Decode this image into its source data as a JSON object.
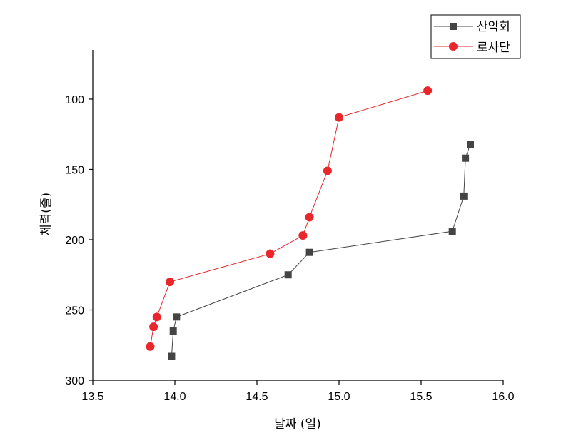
{
  "chart_data": {
    "type": "line",
    "xlabel": "날짜 (일)",
    "ylabel": "체력(줄)",
    "xlim": [
      13.5,
      16.0
    ],
    "ylim": [
      300,
      65
    ],
    "y_inverted": true,
    "xticks": [
      "13.5",
      "14.0",
      "14.5",
      "15.0",
      "15.5",
      "16.0"
    ],
    "yticks": [
      "100",
      "150",
      "200",
      "250",
      "300"
    ],
    "legend_position": "top-right",
    "grid": false,
    "series": [
      {
        "name": "산악회",
        "color": "#444444",
        "marker": "square",
        "x": [
          13.98,
          13.99,
          14.01,
          14.69,
          14.82,
          15.69,
          15.76,
          15.77,
          15.8
        ],
        "y": [
          283,
          265,
          255,
          225,
          209,
          194,
          169,
          142,
          132
        ]
      },
      {
        "name": "로사단",
        "color": "#e8262b",
        "marker": "circle",
        "x": [
          13.85,
          13.87,
          13.89,
          13.97,
          14.58,
          14.78,
          14.82,
          14.93,
          15.0,
          15.54
        ],
        "y": [
          276,
          262,
          255,
          230,
          210,
          197,
          184,
          151,
          113,
          94
        ]
      }
    ]
  }
}
